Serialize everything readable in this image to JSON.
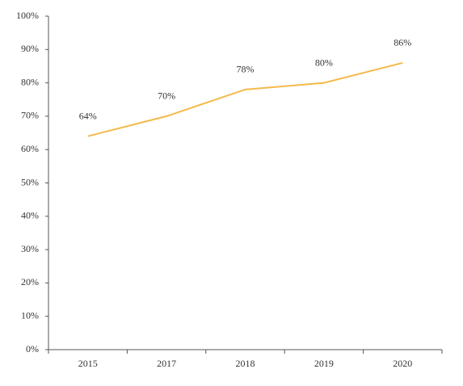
{
  "chart_data": {
    "type": "line",
    "categories": [
      "2015",
      "2017",
      "2018",
      "2019",
      "2020"
    ],
    "series": [
      {
        "values": [
          64,
          70,
          78,
          80,
          86
        ],
        "value_labels": [
          "64%",
          "70%",
          "78%",
          "80%",
          "86%"
        ],
        "color": "#f5b94a"
      }
    ],
    "ylim": [
      0,
      100
    ],
    "yticks": [
      {
        "value": 0,
        "label": "0%"
      },
      {
        "value": 10,
        "label": "10%"
      },
      {
        "value": 20,
        "label": "20%"
      },
      {
        "value": 30,
        "label": "30%"
      },
      {
        "value": 40,
        "label": "40%"
      },
      {
        "value": 50,
        "label": "50%"
      },
      {
        "value": 60,
        "label": "60%"
      },
      {
        "value": 70,
        "label": "70%"
      },
      {
        "value": 80,
        "label": "80%"
      },
      {
        "value": 90,
        "label": "90%"
      },
      {
        "value": 100,
        "label": "100%"
      }
    ],
    "grid": false
  }
}
